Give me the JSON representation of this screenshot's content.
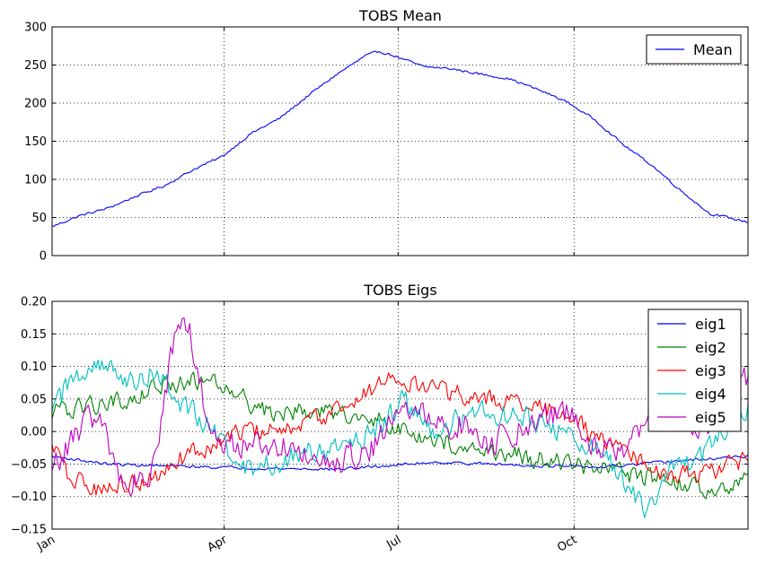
{
  "chart_data": [
    {
      "type": "line",
      "title": "TOBS Mean",
      "xlabel": "",
      "ylabel": "",
      "x_domain": [
        "Jan 1",
        "Dec 31"
      ],
      "ylim": [
        0,
        300
      ],
      "yticks": [
        "0",
        "50",
        "100",
        "150",
        "200",
        "250",
        "300"
      ],
      "xticks": [
        "Jan",
        "Apr",
        "Jul",
        "Oct"
      ],
      "grid": true,
      "legend_position": "top-right",
      "series": [
        {
          "name": "Mean",
          "color": "#0000ff",
          "days": [
            1,
            15,
            30,
            45,
            60,
            75,
            90,
            105,
            120,
            135,
            150,
            165,
            172,
            180,
            195,
            210,
            225,
            240,
            255,
            270,
            285,
            300,
            315,
            330,
            345,
            365
          ],
          "values": [
            38,
            52,
            62,
            78,
            92,
            113,
            130,
            160,
            180,
            210,
            238,
            262,
            268,
            262,
            248,
            245,
            238,
            232,
            218,
            202,
            178,
            145,
            118,
            85,
            55,
            44
          ]
        }
      ]
    },
    {
      "type": "line",
      "title": "TOBS Eigs",
      "xlabel": "",
      "ylabel": "",
      "x_domain": [
        "Jan 1",
        "Dec 31"
      ],
      "ylim": [
        -0.15,
        0.2
      ],
      "yticks": [
        "−0.15",
        "−0.10",
        "−0.05",
        "0.00",
        "0.05",
        "0.10",
        "0.15",
        "0.20"
      ],
      "xticks": [
        "Jan",
        "Apr",
        "Jul",
        "Oct"
      ],
      "grid": true,
      "legend_position": "top-right",
      "series": [
        {
          "name": "eig1",
          "color": "#0000ff",
          "days": [
            1,
            30,
            60,
            90,
            120,
            150,
            180,
            200,
            230,
            260,
            290,
            320,
            365
          ],
          "values": [
            -0.038,
            -0.05,
            -0.053,
            -0.055,
            -0.057,
            -0.058,
            -0.052,
            -0.047,
            -0.05,
            -0.053,
            -0.055,
            -0.047,
            -0.038
          ],
          "noise": 0.003
        },
        {
          "name": "eig2",
          "color": "#008000",
          "days": [
            1,
            20,
            40,
            60,
            80,
            95,
            110,
            130,
            150,
            170,
            190,
            210,
            230,
            250,
            270,
            290,
            310,
            330,
            350,
            365
          ],
          "values": [
            0.03,
            0.04,
            0.05,
            0.07,
            0.08,
            0.07,
            0.03,
            0.03,
            0.03,
            0.02,
            0.0,
            -0.02,
            -0.03,
            -0.04,
            -0.05,
            -0.06,
            -0.07,
            -0.08,
            -0.09,
            -0.07
          ],
          "noise": 0.02
        },
        {
          "name": "eig3",
          "color": "#ff0000",
          "days": [
            1,
            10,
            25,
            40,
            55,
            70,
            85,
            100,
            120,
            140,
            160,
            175,
            190,
            210,
            230,
            250,
            270,
            285,
            300,
            320,
            340,
            365
          ],
          "values": [
            -0.02,
            -0.07,
            -0.09,
            -0.08,
            -0.07,
            -0.04,
            -0.02,
            0.0,
            0.0,
            0.02,
            0.05,
            0.08,
            0.07,
            0.06,
            0.05,
            0.04,
            0.03,
            -0.01,
            -0.03,
            -0.06,
            -0.07,
            -0.04
          ],
          "noise": 0.02
        },
        {
          "name": "eig4",
          "color": "#00bfbf",
          "days": [
            1,
            10,
            25,
            40,
            55,
            70,
            85,
            100,
            115,
            130,
            150,
            170,
            185,
            200,
            215,
            230,
            250,
            265,
            280,
            295,
            310,
            325,
            340,
            365
          ],
          "values": [
            0.02,
            0.08,
            0.11,
            0.07,
            0.09,
            0.04,
            0.0,
            -0.06,
            -0.05,
            -0.03,
            -0.03,
            0.0,
            0.05,
            0.0,
            0.02,
            0.03,
            0.02,
            0.0,
            -0.02,
            -0.05,
            -0.12,
            -0.06,
            -0.04,
            0.03
          ],
          "noise": 0.025
        },
        {
          "name": "eig5",
          "color": "#bf00bf",
          "days": [
            1,
            10,
            25,
            40,
            55,
            65,
            70,
            75,
            80,
            90,
            110,
            130,
            150,
            170,
            185,
            200,
            215,
            230,
            250,
            270,
            285,
            300,
            310,
            325,
            340,
            365
          ],
          "values": [
            -0.05,
            -0.02,
            0.03,
            -0.09,
            -0.05,
            0.15,
            0.19,
            0.13,
            0.05,
            -0.02,
            -0.02,
            -0.02,
            -0.05,
            -0.02,
            0.05,
            0.01,
            0.01,
            -0.02,
            0.01,
            0.03,
            -0.02,
            -0.04,
            0.01,
            0.04,
            0.0,
            0.08
          ],
          "noise": 0.03
        }
      ]
    }
  ]
}
